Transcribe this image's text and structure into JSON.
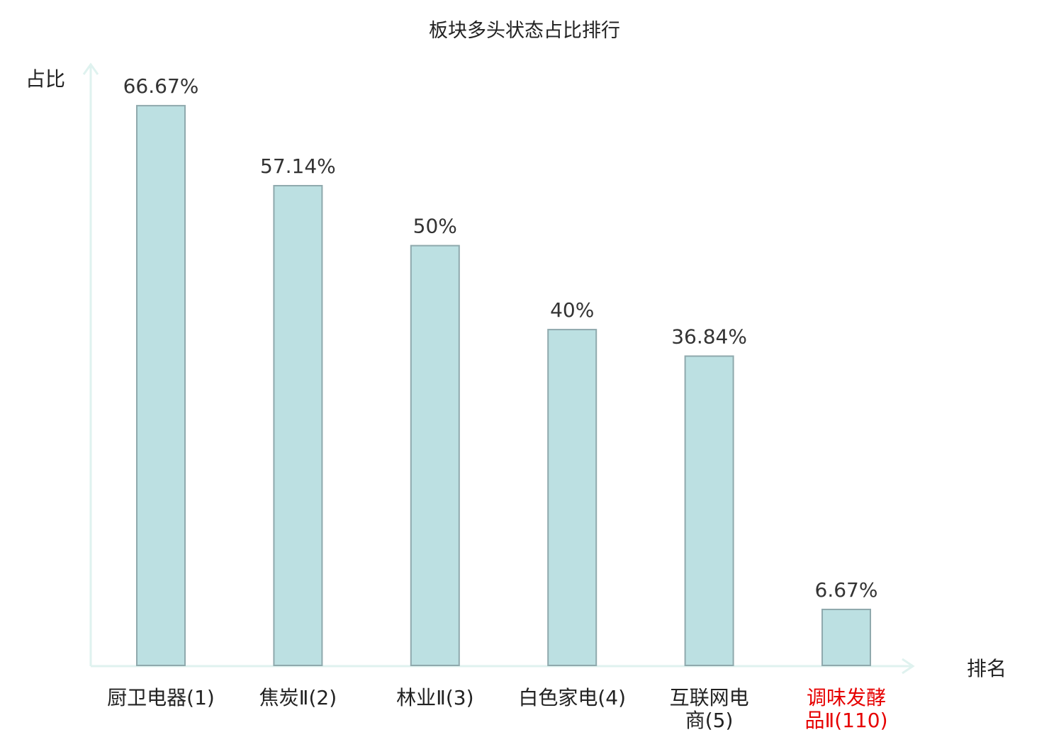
{
  "chart_data": {
    "type": "bar",
    "title": "板块多头状态占比排行",
    "xlabel": "排名",
    "ylabel": "占比",
    "ylim": [
      0,
      73.6
    ],
    "grid": false,
    "categories": [
      [
        "厨卫电器(1)"
      ],
      [
        "焦炭Ⅱ(2)"
      ],
      [
        "林业Ⅱ(3)"
      ],
      [
        "白色家电(4)"
      ],
      [
        "互联网电",
        "商(5)"
      ],
      [
        "调味发酵",
        "品Ⅱ(110)"
      ]
    ],
    "values": [
      66.67,
      57.14,
      50,
      40,
      36.84,
      6.67
    ],
    "value_labels": [
      "66.67%",
      "57.14%",
      "50%",
      "40%",
      "36.84%",
      "6.67%"
    ],
    "highlighted_category_index": 5
  },
  "colors": {
    "bar_fill": "#bce0e2",
    "bar_stroke": "#8fa9ad",
    "axis": "#dff2ef",
    "text": "#222222",
    "highlight_text": "#e60000"
  }
}
